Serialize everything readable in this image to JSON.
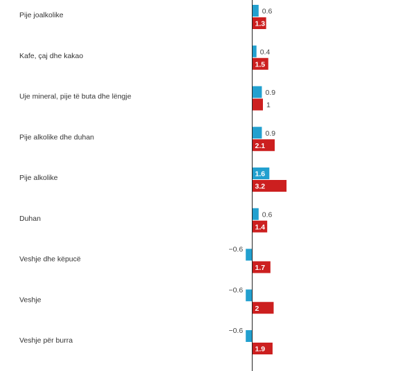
{
  "chart_data": {
    "type": "bar",
    "orientation": "horizontal",
    "categories": [
      "Pije joalkolike",
      "Kafe, çaj dhe kakao",
      "Uje mineral, pije të buta dhe lëngje",
      "Pije alkolike dhe duhan",
      "Pije alkolike",
      "Duhan",
      "Veshje dhe këpucë",
      "Veshje",
      "Veshje për burra"
    ],
    "series": [
      {
        "color": "#22a0cf",
        "values": [
          0.6,
          0.4,
          0.9,
          0.9,
          1.6,
          0.6,
          -0.6,
          -0.6,
          -0.6
        ],
        "labels": [
          "0.6",
          "0.4",
          "0.9",
          "0.9",
          "1.6",
          "0.6",
          "−0.6",
          "−0.6",
          "−0.6"
        ]
      },
      {
        "color": "#cc1f1f",
        "values": [
          1.3,
          1.5,
          1.0,
          2.1,
          3.2,
          1.4,
          1.7,
          2.0,
          1.9
        ],
        "labels": [
          "1.3",
          "1.5",
          "1",
          "2.1",
          "3.2",
          "1.4",
          "1.7",
          "2",
          "1.9"
        ]
      }
    ],
    "title": "",
    "xlabel": "",
    "ylabel": "",
    "grid": false,
    "legend": "none"
  }
}
